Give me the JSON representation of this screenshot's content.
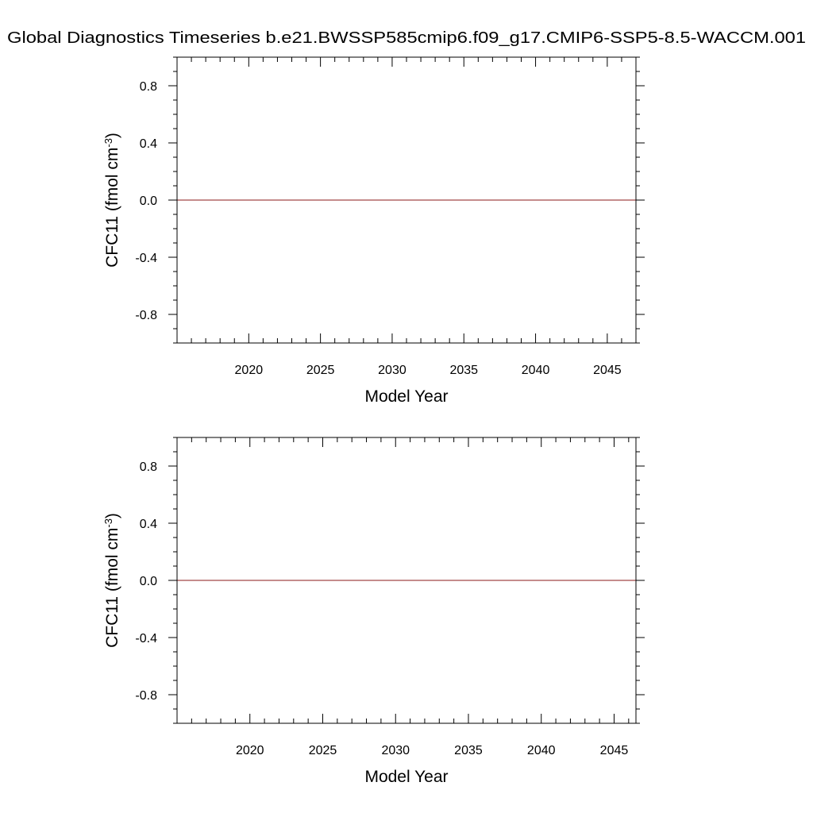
{
  "page": {
    "title": "Global Diagnostics Timeseries b.e21.BWSSP585cmip6.f09_g17.CMIP6-SSP5-8.5-WACCM.001"
  },
  "colors": {
    "series": "#8b1a1a",
    "axes": "#000000",
    "background": "#ffffff"
  },
  "chart_data": [
    {
      "type": "line",
      "xlabel": "Model Year",
      "ylabel": "CFC11 (fmol cm",
      "ylabel_sup": "-3",
      "ylabel_close": ")",
      "xlim": [
        2015,
        2047
      ],
      "ylim": [
        -1.0,
        1.0
      ],
      "xticks": [
        2020,
        2025,
        2030,
        2035,
        2040,
        2045
      ],
      "xtick_labels": [
        "2020",
        "2025",
        "2030",
        "2035",
        "2040",
        "2045"
      ],
      "yticks": [
        0.8,
        0.4,
        0.0,
        -0.4,
        -0.8
      ],
      "ytick_labels": [
        "0.8",
        "0.4",
        "0.0",
        "-0.4",
        "-0.8"
      ],
      "grid": false,
      "series": [
        {
          "x": [
            2015,
            2047
          ],
          "y": [
            0.0,
            0.0
          ]
        }
      ]
    },
    {
      "type": "line",
      "xlabel": "Model Year",
      "ylabel": "CFC11 (fmol cm",
      "ylabel_sup": "-3",
      "ylabel_close": ")",
      "xlim": [
        2015,
        2046.5
      ],
      "ylim": [
        -1.0,
        1.0
      ],
      "xticks": [
        2020,
        2025,
        2030,
        2035,
        2040,
        2045
      ],
      "xtick_labels": [
        "2020",
        "2025",
        "2030",
        "2035",
        "2040",
        "2045"
      ],
      "yticks": [
        0.8,
        0.4,
        0.0,
        -0.4,
        -0.8
      ],
      "ytick_labels": [
        "0.8",
        "0.4",
        "0.0",
        "-0.4",
        "-0.8"
      ],
      "grid": false,
      "series": [
        {
          "x": [
            2015,
            2046.5
          ],
          "y": [
            0.0,
            0.0
          ]
        }
      ]
    }
  ]
}
